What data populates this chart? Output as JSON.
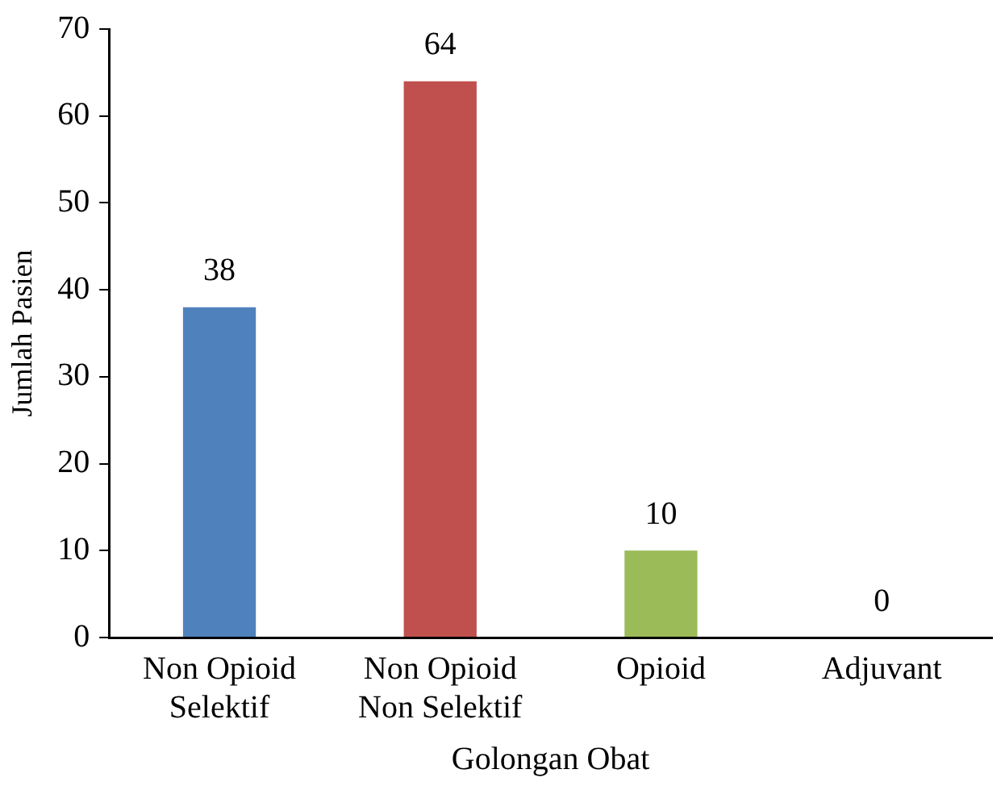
{
  "chart_data": {
    "type": "bar",
    "xlabel": "Golongan Obat",
    "ylabel": "Jumlah Pasien",
    "categories": [
      "Non Opioid Selektif",
      "Non Opioid Non Selektif",
      "Opioid",
      "Adjuvant"
    ],
    "values": [
      38,
      64,
      10,
      0
    ],
    "colors": [
      "#4f81bd",
      "#c0504d",
      "#9bbb59",
      "#8064a2"
    ],
    "ylim": [
      0,
      70
    ],
    "yticks": [
      0,
      10,
      20,
      30,
      40,
      50,
      60,
      70
    ],
    "grid": false,
    "legend": false,
    "data_labels": true
  }
}
